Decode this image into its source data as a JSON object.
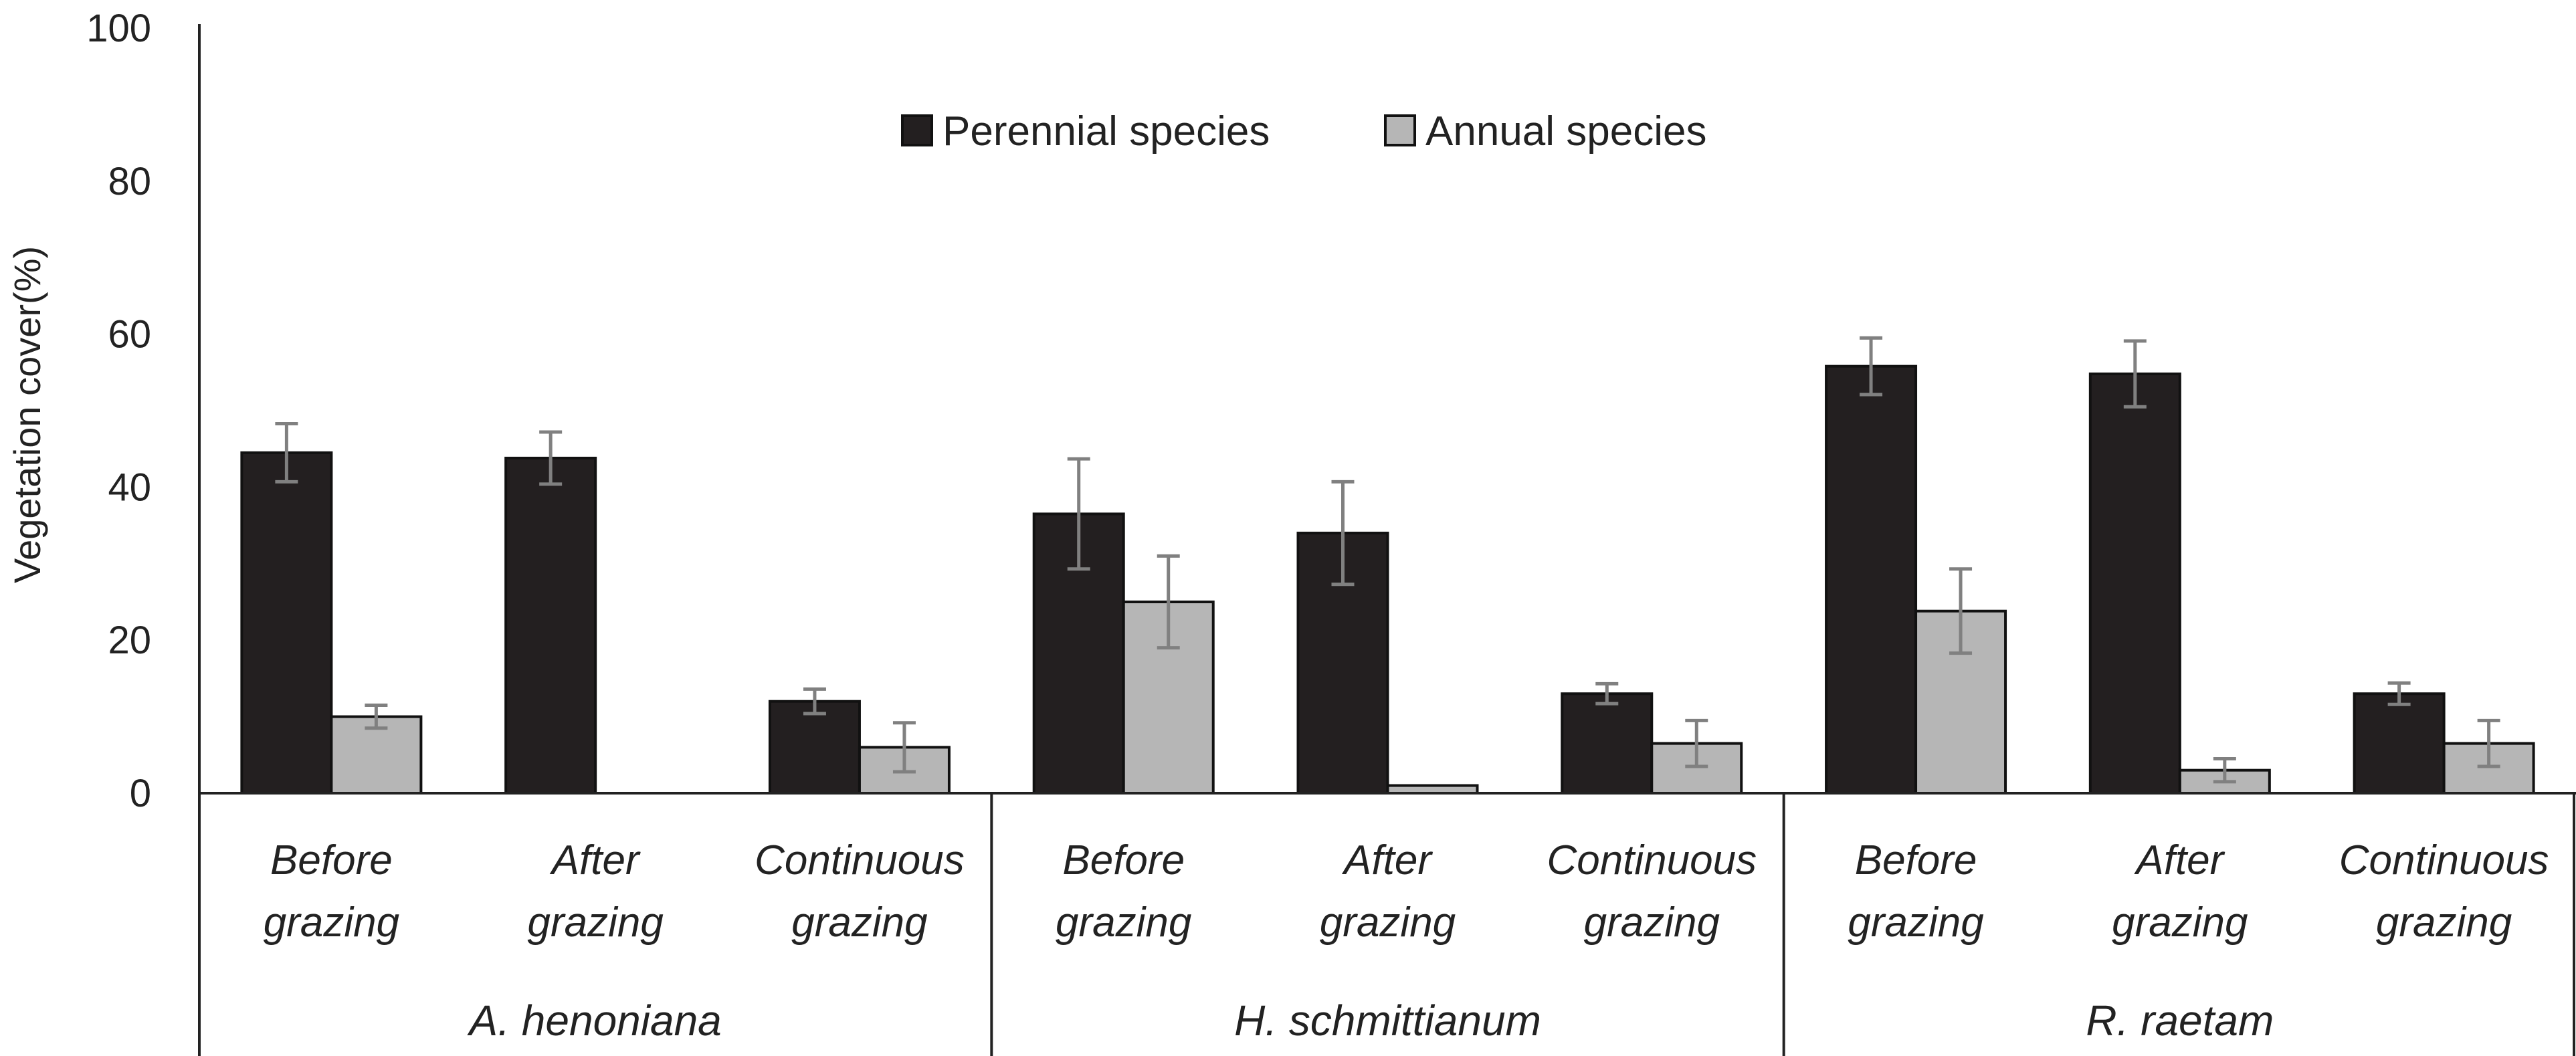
{
  "chart_data": {
    "type": "bar",
    "title": "",
    "xlabel": "",
    "ylabel": "Vegetation cover(%)",
    "ylim": [
      0,
      100
    ],
    "yticks": [
      0,
      20,
      40,
      60,
      80,
      100
    ],
    "grid": false,
    "legend_position": "top-center",
    "groups": [
      {
        "label": "A. henoniana",
        "categories": [
          {
            "line1": "Before",
            "line2": "grazing"
          },
          {
            "line1": "After",
            "line2": "grazing"
          },
          {
            "line1": "Continuous",
            "line2": "grazing"
          }
        ]
      },
      {
        "label": "H. schmittianum",
        "categories": [
          {
            "line1": "Before",
            "line2": "grazing"
          },
          {
            "line1": "After",
            "line2": "grazing"
          },
          {
            "line1": "Continuous",
            "line2": "grazing"
          }
        ]
      },
      {
        "label": "R. raetam",
        "categories": [
          {
            "line1": "Before",
            "line2": "grazing"
          },
          {
            "line1": "After",
            "line2": "grazing"
          },
          {
            "line1": "Continuous",
            "line2": "grazing"
          }
        ]
      }
    ],
    "series": [
      {
        "name": "Perennial species",
        "color": "#231f20",
        "values": [
          44.5,
          43.8,
          12.0,
          36.5,
          34.0,
          13.0,
          55.8,
          54.8,
          13.0
        ],
        "errors": [
          3.8,
          3.4,
          1.6,
          7.2,
          6.7,
          1.3,
          3.7,
          4.3,
          1.4
        ]
      },
      {
        "name": "Annual species",
        "color": "#b6b6b6",
        "values": [
          10.0,
          0.0,
          6.0,
          25.0,
          1.0,
          6.5,
          23.8,
          3.0,
          6.5
        ],
        "errors": [
          1.5,
          0.0,
          3.2,
          6.0,
          0.0,
          3.0,
          5.5,
          1.5,
          3.0
        ]
      }
    ]
  }
}
